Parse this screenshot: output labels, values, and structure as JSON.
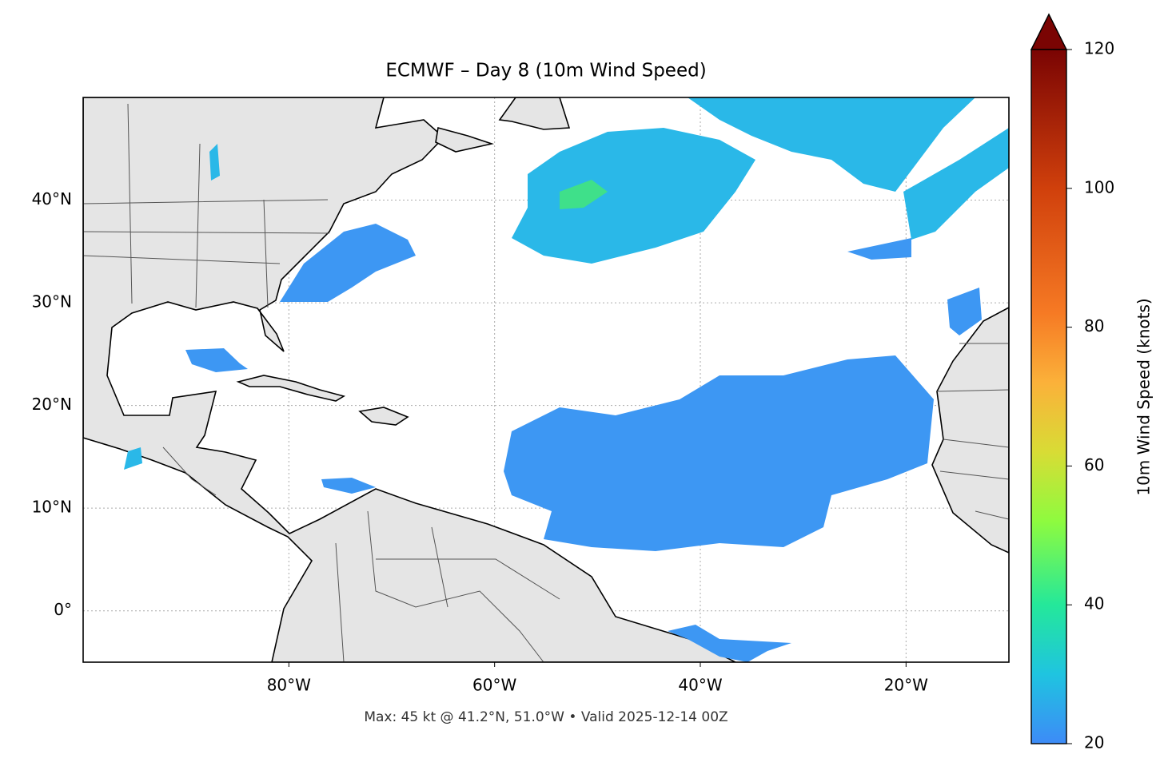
{
  "map": {
    "title": "ECMWF – Day 8 (10m Wind Speed)",
    "xlim": [
      -100,
      -10
    ],
    "ylim": [
      -5,
      50
    ],
    "xticks": [
      {
        "value": -80,
        "label": "80°W"
      },
      {
        "value": -60,
        "label": "60°W"
      },
      {
        "value": -40,
        "label": "40°W"
      },
      {
        "value": -20,
        "label": "20°W"
      }
    ],
    "yticks": [
      {
        "value": 0,
        "label": "0°"
      },
      {
        "value": 10,
        "label": "10°N"
      },
      {
        "value": 20,
        "label": "20°N"
      },
      {
        "value": 30,
        "label": "30°N"
      },
      {
        "value": 40,
        "label": "40°N"
      }
    ],
    "grid": true,
    "footer": "Max: 45 kt @ 41.2°N, 51.0°W • Valid 2025-12-14 00Z",
    "colorbar": {
      "label": "10m Wind Speed (knots)",
      "lim": [
        20,
        120
      ],
      "ticks": [
        20,
        40,
        60,
        80,
        100,
        120
      ]
    }
  }
}
